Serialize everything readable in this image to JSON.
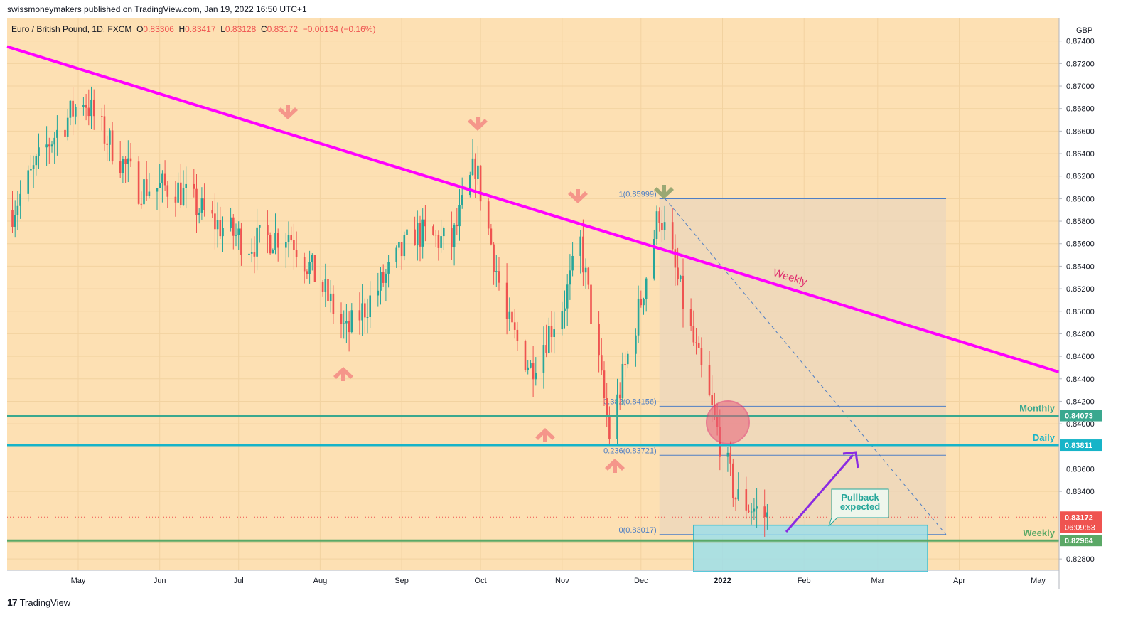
{
  "publisher": "swissmoneymakers published on TradingView.com, Jan 19, 2022 16:50 UTC+1",
  "legend": {
    "symbol": "Euro / British Pound, 1D, FXCM",
    "open_label": "O",
    "open": "0.83306",
    "high_label": "H",
    "high": "0.83417",
    "low_label": "L",
    "low": "0.83128",
    "close_label": "C",
    "close": "0.83172",
    "change": "−0.00134 (−0.16%)"
  },
  "currency": "GBP",
  "footer": {
    "logo_mark": "17",
    "logo_text": "TradingView"
  },
  "colors": {
    "background": "#fde0b3",
    "up_candle": "#26a69a",
    "down_candle": "#ef5350",
    "trendline": "#ff00ff",
    "monthly_level": "#3aa88f",
    "daily_level": "#17b4c8",
    "weekly_level": "#5aa866",
    "fib": "#4f7fc4",
    "arrow_red": "#f5968a",
    "arrow_green": "#9aa874",
    "pullback_arrow": "#8a2be2"
  },
  "chart_data": {
    "type": "candlestick",
    "ylim": [
      0.827,
      0.876
    ],
    "y_ticks": [
      "0.87400",
      "0.87200",
      "0.87000",
      "0.86800",
      "0.86600",
      "0.86400",
      "0.86200",
      "0.86000",
      "0.85800",
      "0.85600",
      "0.85400",
      "0.85200",
      "0.85000",
      "0.84800",
      "0.84600",
      "0.84400",
      "0.84200",
      "0.84000",
      "0.83600",
      "0.83400",
      "0.82800"
    ],
    "x_ticks": [
      "May",
      "Jun",
      "Jul",
      "Aug",
      "Sep",
      "Oct",
      "Nov",
      "Dec",
      "2022",
      "Feb",
      "Mar",
      "Apr",
      "May"
    ],
    "approx_closes": [
      [
        "2021-04-06",
        0.859
      ],
      [
        "2021-04-20",
        0.865
      ],
      [
        "2021-05-03",
        0.869
      ],
      [
        "2021-05-10",
        0.866
      ],
      [
        "2021-05-24",
        0.861
      ],
      [
        "2021-06-07",
        0.861
      ],
      [
        "2021-06-21",
        0.858
      ],
      [
        "2021-07-05",
        0.856
      ],
      [
        "2021-07-20",
        0.857
      ],
      [
        "2021-08-02",
        0.852
      ],
      [
        "2021-08-11",
        0.848
      ],
      [
        "2021-08-23",
        0.852
      ],
      [
        "2021-09-06",
        0.857
      ],
      [
        "2021-09-20",
        0.856
      ],
      [
        "2021-09-29",
        0.863
      ],
      [
        "2021-10-11",
        0.849
      ],
      [
        "2021-10-20",
        0.845
      ],
      [
        "2021-11-02",
        0.851
      ],
      [
        "2021-11-08",
        0.856
      ],
      [
        "2021-11-19",
        0.839
      ],
      [
        "2021-12-01",
        0.851
      ],
      [
        "2021-12-08",
        0.859
      ],
      [
        "2021-12-20",
        0.848
      ],
      [
        "2021-12-31",
        0.8385
      ],
      [
        "2022-01-06",
        0.8335
      ],
      [
        "2022-01-18",
        0.8317
      ]
    ],
    "current_price": "0.83172",
    "countdown": "06:09:53",
    "levels": [
      {
        "name": "Monthly",
        "value": 0.84073,
        "label": "0.84073"
      },
      {
        "name": "Daily",
        "value": 0.83811,
        "label": "0.83811"
      },
      {
        "name": "Weekly",
        "value": 0.82964,
        "label": "0.82964"
      }
    ],
    "trendline": {
      "name": "Weekly",
      "from": [
        "2021-03-29",
        0.8735
      ],
      "to": [
        "2022-05-10",
        0.8446
      ]
    },
    "fib_levels": [
      {
        "label": "1(0.85999)",
        "value": 0.85999
      },
      {
        "label": "0.382(0.84156)",
        "value": 0.84156
      },
      {
        "label": "0.236(0.83721)",
        "value": 0.83721
      },
      {
        "label": "0(0.83017)",
        "value": 0.83017
      }
    ],
    "annotation": "Pullback expected",
    "grid": true
  }
}
